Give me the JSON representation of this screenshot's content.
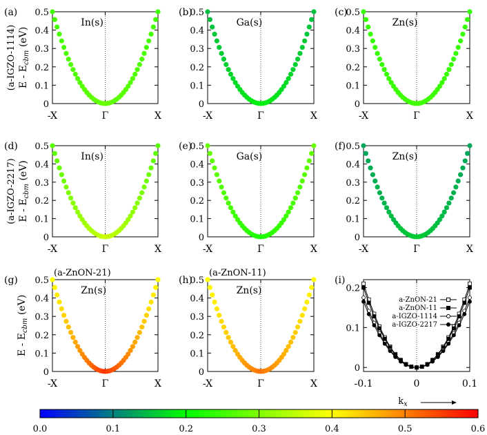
{
  "figure": {
    "colorbar": {
      "ticks": [
        "0.0",
        "0.1",
        "0.2",
        "0.3",
        "0.4",
        "0.5",
        "0.6"
      ],
      "range": [
        0,
        0.6
      ],
      "colormap": [
        "#0000ff",
        "#00ff00",
        "#ffff00",
        "#ff0000"
      ]
    },
    "row_labels": [
      "(a-IGZO-1114)",
      "(a-IGZO-2217)"
    ],
    "ylabel": "E - E_cbm (eV)",
    "panel_i_xlabel": "k_x"
  },
  "chart_data": [
    {
      "type": "scatter",
      "panel": "(a)",
      "label": "In(s)",
      "header": "",
      "x_ticks": [
        "-X",
        "Γ",
        "X"
      ],
      "y_ticks": [
        "0",
        "0.1",
        "0.2",
        "0.3",
        "0.4",
        "0.5"
      ],
      "ylim": [
        0,
        0.5
      ],
      "band": "parabolic",
      "color_value_center": 0.28,
      "color_value_edge": 0.25
    },
    {
      "type": "scatter",
      "panel": "(b)",
      "label": "Ga(s)",
      "header": "",
      "x_ticks": [
        "-X",
        "Γ",
        "X"
      ],
      "y_ticks": [
        "0",
        "0.1",
        "0.2",
        "0.3",
        "0.4",
        "0.5"
      ],
      "ylim": [
        0,
        0.5
      ],
      "band": "parabolic",
      "color_value_center": 0.19,
      "color_value_edge": 0.15
    },
    {
      "type": "scatter",
      "panel": "(c)",
      "label": "Zn(s)",
      "header": "",
      "x_ticks": [
        "-X",
        "Γ",
        "X"
      ],
      "y_ticks": [
        "0",
        "0.1",
        "0.2",
        "0.3",
        "0.4",
        "0.5"
      ],
      "ylim": [
        0,
        0.5
      ],
      "band": "parabolic",
      "color_value_center": 0.25,
      "color_value_edge": 0.24
    },
    {
      "type": "scatter",
      "panel": "(d)",
      "label": "In(s)",
      "header": "",
      "x_ticks": [
        "-X",
        "Γ",
        "X"
      ],
      "y_ticks": [
        "0",
        "0.1",
        "0.2",
        "0.3",
        "0.4",
        "0.5"
      ],
      "ylim": [
        0,
        0.5
      ],
      "band": "parabolic",
      "color_value_center": 0.36,
      "color_value_edge": 0.27
    },
    {
      "type": "scatter",
      "panel": "(e)",
      "label": "Ga(s)",
      "header": "",
      "x_ticks": [
        "-X",
        "Γ",
        "X"
      ],
      "y_ticks": [
        "0",
        "0.1",
        "0.2",
        "0.3",
        "0.4",
        "0.5"
      ],
      "ylim": [
        0,
        0.5
      ],
      "band": "parabolic",
      "color_value_center": 0.22,
      "color_value_edge": 0.28
    },
    {
      "type": "scatter",
      "panel": "(f)",
      "label": "Zn(s)",
      "header": "",
      "x_ticks": [
        "-X",
        "Γ",
        "X"
      ],
      "y_ticks": [
        "0",
        "0.1",
        "0.2",
        "0.3",
        "0.4",
        "0.5"
      ],
      "ylim": [
        0,
        0.5
      ],
      "band": "parabolic",
      "color_value_center": 0.16,
      "color_value_edge": 0.13
    },
    {
      "type": "scatter",
      "panel": "(g)",
      "label": "Zn(s)",
      "header": "(a-ZnON-21)",
      "x_ticks": [
        "-X",
        "Γ",
        "X"
      ],
      "y_ticks": [
        "0",
        "0.1",
        "0.2",
        "0.3",
        "0.4",
        "0.5"
      ],
      "ylim": [
        0,
        0.5
      ],
      "band": "parabolic",
      "color_value_center": 0.56,
      "color_value_edge": 0.4
    },
    {
      "type": "scatter",
      "panel": "(h)",
      "label": "Zn(s)",
      "header": "(a-ZnON-11)",
      "x_ticks": [
        "-X",
        "Γ",
        "X"
      ],
      "y_ticks": [
        "0",
        "0.1",
        "0.2",
        "0.3",
        "0.4",
        "0.5"
      ],
      "ylim": [
        0,
        0.5
      ],
      "band": "parabolic",
      "color_value_center": 0.51,
      "color_value_edge": 0.4
    },
    {
      "type": "line",
      "panel": "(i)",
      "label": "",
      "header": "",
      "x_ticks": [
        "-0.1",
        "0",
        "0.1"
      ],
      "y_ticks": [
        "0",
        "0.1",
        "0.2"
      ],
      "xlim": [
        -0.1,
        0.1
      ],
      "ylim": [
        -0.01,
        0.22
      ],
      "series": [
        {
          "name": "a-ZnON-21",
          "marker": "open-square",
          "curvature": 21.0
        },
        {
          "name": "a-ZnON-11",
          "marker": "filled-square",
          "curvature": 20.0
        },
        {
          "name": "a-IGZO-1114",
          "marker": "open-circle",
          "curvature": 17.5
        },
        {
          "name": "a-IGZO-2217",
          "marker": "filled-circle",
          "curvature": 16.5
        }
      ]
    }
  ]
}
